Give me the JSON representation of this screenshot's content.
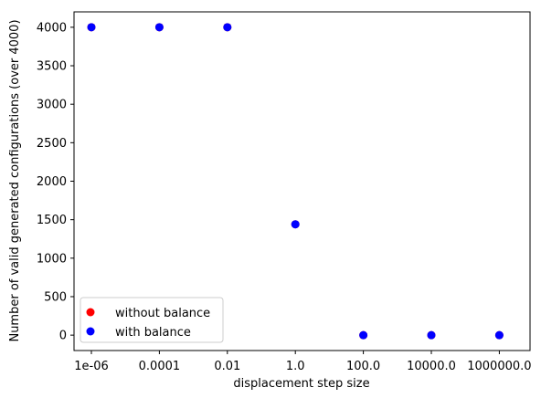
{
  "chart_data": {
    "type": "scatter",
    "title": "",
    "xlabel": "displacement step size",
    "ylabel": "Number of valid generated configurations (over 4000)",
    "x": [
      "1e-06",
      "0.0001",
      "0.01",
      "1.0",
      "100.0",
      "10000.0",
      "1000000.0"
    ],
    "ylim": [
      -200,
      4200
    ],
    "yticks": [
      0,
      500,
      1000,
      1500,
      2000,
      2500,
      3000,
      3500,
      4000
    ],
    "grid": false,
    "legend_position": "lower-left",
    "series": [
      {
        "name": "without balance",
        "color": "#ff0000",
        "values": [
          4000,
          4000,
          4000,
          1440,
          0,
          0,
          0
        ]
      },
      {
        "name": "with balance",
        "color": "#0000ff",
        "values": [
          4000,
          4000,
          4000,
          1440,
          0,
          0,
          0
        ]
      }
    ]
  }
}
